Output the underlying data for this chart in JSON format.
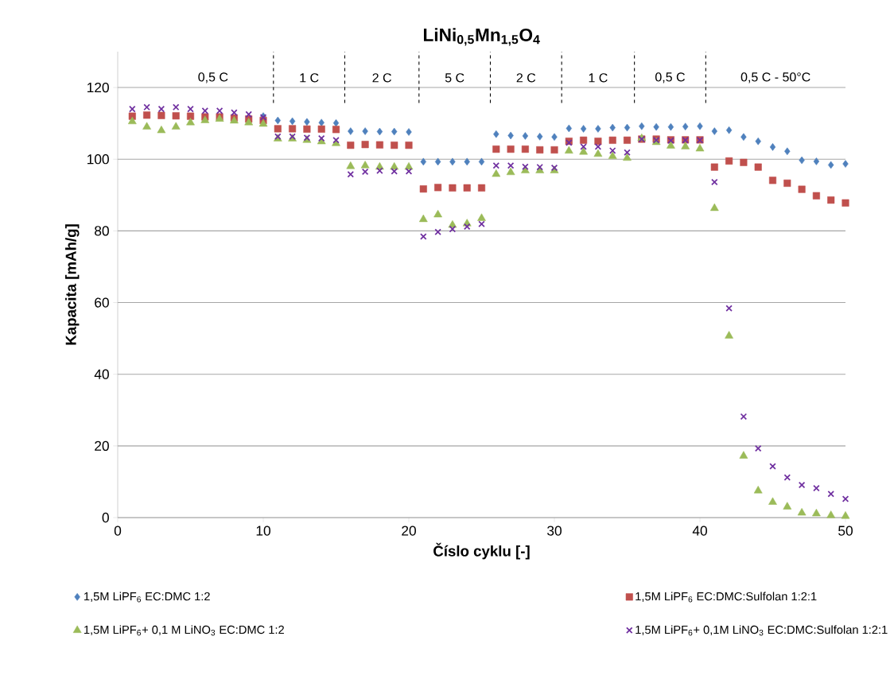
{
  "chart_data": {
    "type": "scatter",
    "title": "LiNi$_{0,5}$Mn$_{1,5}$O$_{4}$",
    "xlabel": "Číslo cyklu [-]",
    "ylabel": "Kapacita [mAh/g]",
    "x": [
      1,
      2,
      3,
      4,
      5,
      6,
      7,
      8,
      9,
      10,
      11,
      12,
      13,
      14,
      15,
      16,
      17,
      18,
      19,
      20,
      21,
      22,
      23,
      24,
      25,
      26,
      27,
      28,
      29,
      30,
      31,
      32,
      33,
      34,
      35,
      36,
      37,
      38,
      39,
      40,
      41,
      42,
      43,
      44,
      45,
      46,
      47,
      48,
      49,
      50
    ],
    "series": [
      {
        "name": "1,5M LiPF$_{6}$ EC:DMC 1:2",
        "color": "#4f81bd",
        "marker": "diamond",
        "values": [
          null,
          null,
          null,
          null,
          null,
          null,
          null,
          null,
          null,
          112,
          110.8,
          110.6,
          110.4,
          110.2,
          110.1,
          107.8,
          107.8,
          107.7,
          107.7,
          107.6,
          99.3,
          99.3,
          99.3,
          99.3,
          99.3,
          107,
          106.6,
          106.5,
          106.3,
          106.2,
          108.6,
          108.5,
          108.5,
          108.8,
          108.8,
          109.2,
          109,
          109,
          109.1,
          109.2,
          107.8,
          108.1,
          106.2,
          105,
          103.4,
          102.2,
          99.7,
          99.4,
          98.4,
          98.7
        ]
      },
      {
        "name": "1,5M LiPF$_{6}$ EC:DMC:Sulfolan 1:2:1",
        "color": "#c0504d",
        "marker": "square",
        "values": [
          112,
          112.3,
          112.2,
          112.1,
          112,
          111.8,
          111.8,
          111.5,
          111.2,
          110.8,
          108.5,
          108.5,
          108.4,
          108.4,
          108.3,
          103.9,
          104.1,
          104,
          103.9,
          103.9,
          91.7,
          92.1,
          92,
          92,
          92,
          102.8,
          102.8,
          102.8,
          102.6,
          102.6,
          105,
          105.3,
          105,
          105.3,
          105.3,
          105.6,
          105.6,
          105.4,
          105.4,
          105.4,
          97.8,
          99.5,
          99.1,
          97.8,
          94.1,
          93.3,
          91.6,
          89.8,
          88.6,
          87.8
        ]
      },
      {
        "name": "1,5M LiPF$_{6}$+ 0,1 M LiNO$_{3}$ EC:DMC 1:2",
        "color": "#9bbb59",
        "marker": "triangle",
        "values": [
          110.5,
          109,
          108,
          109,
          110.2,
          110.8,
          111.2,
          110.7,
          110.2,
          109.8,
          105.7,
          105.7,
          105.3,
          104.9,
          104.4,
          98,
          98.2,
          97.8,
          97.8,
          97.8,
          83.2,
          84.5,
          81.6,
          82,
          83.5,
          95.8,
          96.3,
          96.8,
          96.8,
          96.8,
          102.3,
          102,
          101.4,
          100.8,
          100.3,
          105.8,
          104.7,
          103.7,
          103.5,
          102.9,
          86.3,
          50.7,
          17.2,
          7.5,
          4.3,
          3,
          1.3,
          1.1,
          0.6,
          0.4
        ]
      },
      {
        "name": "1,5M LiPF$_{6}$+ 0,1M LiNO$_{3}$ EC:DMC:Sulfolan 1:2:1",
        "color": "#7030a0",
        "marker": "cross",
        "values": [
          114,
          114.5,
          114,
          114.5,
          114,
          113.5,
          113.5,
          113,
          112.5,
          111.7,
          106.3,
          106.3,
          106,
          105.8,
          105.3,
          95.8,
          96.5,
          96.8,
          96.6,
          96.6,
          78.4,
          79.7,
          80.5,
          81.2,
          81.9,
          98.2,
          98.2,
          97.9,
          97.8,
          97.6,
          104.6,
          103.5,
          103.5,
          102.4,
          101.9,
          105.6,
          105.3,
          105.2,
          105.3,
          105.3,
          93.6,
          58.4,
          28.2,
          19.3,
          14.3,
          11.2,
          9.1,
          8.2,
          6.6,
          5.2
        ]
      }
    ],
    "xlim": [
      0,
      50
    ],
    "ylim": [
      0,
      130
    ],
    "xticks": [
      0,
      10,
      20,
      30,
      40,
      50
    ],
    "yticks": [
      0,
      20,
      40,
      60,
      80,
      100,
      120
    ],
    "grid": "y",
    "legend": "bottom",
    "ref_lines": [
      {
        "axis": "x",
        "value": 10.7,
        "line_style": "dashed",
        "color": "#000000"
      },
      {
        "axis": "x",
        "value": 15.6,
        "line_style": "dashed",
        "color": "#000000"
      },
      {
        "axis": "x",
        "value": 20.7,
        "line_style": "dashed",
        "color": "#000000"
      },
      {
        "axis": "x",
        "value": 25.6,
        "line_style": "dashed",
        "color": "#000000"
      },
      {
        "axis": "x",
        "value": 30.5,
        "line_style": "dashed",
        "color": "#000000"
      },
      {
        "axis": "x",
        "value": 35.5,
        "line_style": "dashed",
        "color": "#000000"
      },
      {
        "axis": "x",
        "value": 40.4,
        "line_style": "dashed",
        "color": "#000000"
      }
    ],
    "annotations": [
      "0,5 C",
      "1 C",
      "2 C",
      "5 C",
      "2 C",
      "1 C",
      "0,5 C",
      "0,5 C - 50°C"
    ]
  }
}
